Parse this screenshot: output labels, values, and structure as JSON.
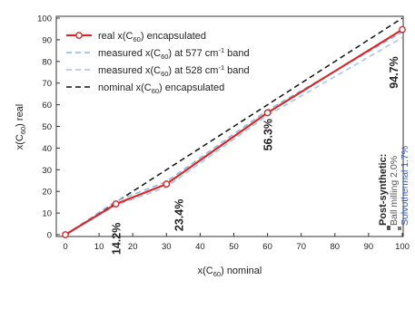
{
  "chart_data": {
    "type": "line",
    "x_label": {
      "prefix": "x(C",
      "sub": "60",
      "suffix": ") nominal"
    },
    "y_label": {
      "prefix": "x(C",
      "sub": "60",
      "suffix": ") real"
    },
    "xlim": [
      0,
      100
    ],
    "ylim": [
      0,
      100
    ],
    "xticks": [
      0,
      10,
      20,
      30,
      40,
      50,
      60,
      70,
      80,
      90,
      100
    ],
    "yticks": [
      0,
      10,
      20,
      30,
      40,
      50,
      60,
      70,
      80,
      90,
      100
    ],
    "grid": false,
    "legend_position": "top-left",
    "series": [
      {
        "legend": {
          "a": "real x(C",
          "sub": "60",
          "b": ") encapsulated",
          "sup": "",
          "c": ""
        },
        "color": "#d42a2a",
        "style": "solid",
        "markers": true,
        "x": [
          0,
          15,
          30,
          60,
          100
        ],
        "y": [
          0,
          14.2,
          23.4,
          56.3,
          94.7
        ]
      },
      {
        "legend": {
          "a": "measured x(C",
          "sub": "60",
          "b": ") at 577 cm",
          "sup": "-1",
          "c": " band"
        },
        "color": "#8ab7e6",
        "style": "dashed",
        "markers": false,
        "x": [
          0,
          15,
          30,
          60,
          100
        ],
        "y": [
          0,
          15.5,
          24.5,
          57.5,
          93.5
        ]
      },
      {
        "legend": {
          "a": "measured x(C",
          "sub": "60",
          "b": ") at 528 cm",
          "sup": "-1",
          "c": " band"
        },
        "color": "#a4c4ea",
        "style": "dashed",
        "markers": false,
        "x": [
          0,
          15,
          30,
          60,
          100
        ],
        "y": [
          0,
          13.5,
          22.0,
          55.0,
          91.0
        ]
      },
      {
        "legend": {
          "a": "nominal x(C",
          "sub": "60",
          "b": ") encapsulated",
          "sup": "",
          "c": ""
        },
        "color": "#111111",
        "style": "dashed",
        "markers": false,
        "x": [
          0,
          100
        ],
        "y": [
          0,
          100
        ]
      }
    ],
    "annotations": [
      {
        "text": "14.2%",
        "x": 15,
        "y": 14.2
      },
      {
        "text": "23.4%",
        "x": 30,
        "y": 23.4
      },
      {
        "text": "56.3%",
        "x": 60,
        "y": 56.3
      },
      {
        "text": "94.7%",
        "x": 100,
        "y": 94.7
      }
    ],
    "side_note": {
      "title": "Post-synthetic:",
      "ball_milling": "Ball milling 2.0%",
      "solvothermal": "Solvothermal 1.7%"
    }
  }
}
